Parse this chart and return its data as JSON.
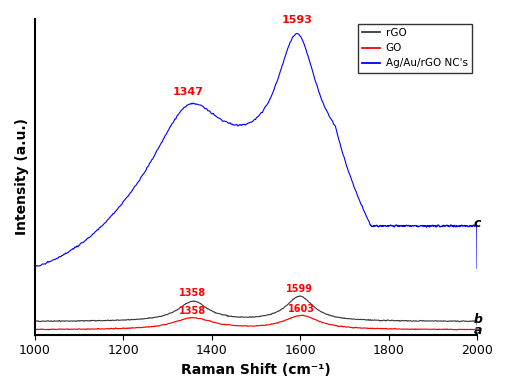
{
  "title": "",
  "xlabel": "Raman Shift (cm⁻¹)",
  "ylabel": "Intensity (a.u.)",
  "xlim": [
    1000,
    2000
  ],
  "legend_labels": [
    "rGO",
    "GO",
    "Ag/Au/rGO NC's"
  ],
  "legend_colors": [
    "#3a3a3a",
    "#ff0000",
    "#0000ff"
  ],
  "annotation_color_red": "#ff0000",
  "blue_peaks": [
    {
      "label": "1347",
      "x": 1347
    },
    {
      "label": "1593",
      "x": 1593
    }
  ],
  "gray_peaks": [
    {
      "label": "1358",
      "x": 1358
    },
    {
      "label": "1599",
      "x": 1599
    }
  ],
  "red_peaks": [
    {
      "label": "1358",
      "x": 1358
    },
    {
      "label": "1603",
      "x": 1603
    }
  ]
}
